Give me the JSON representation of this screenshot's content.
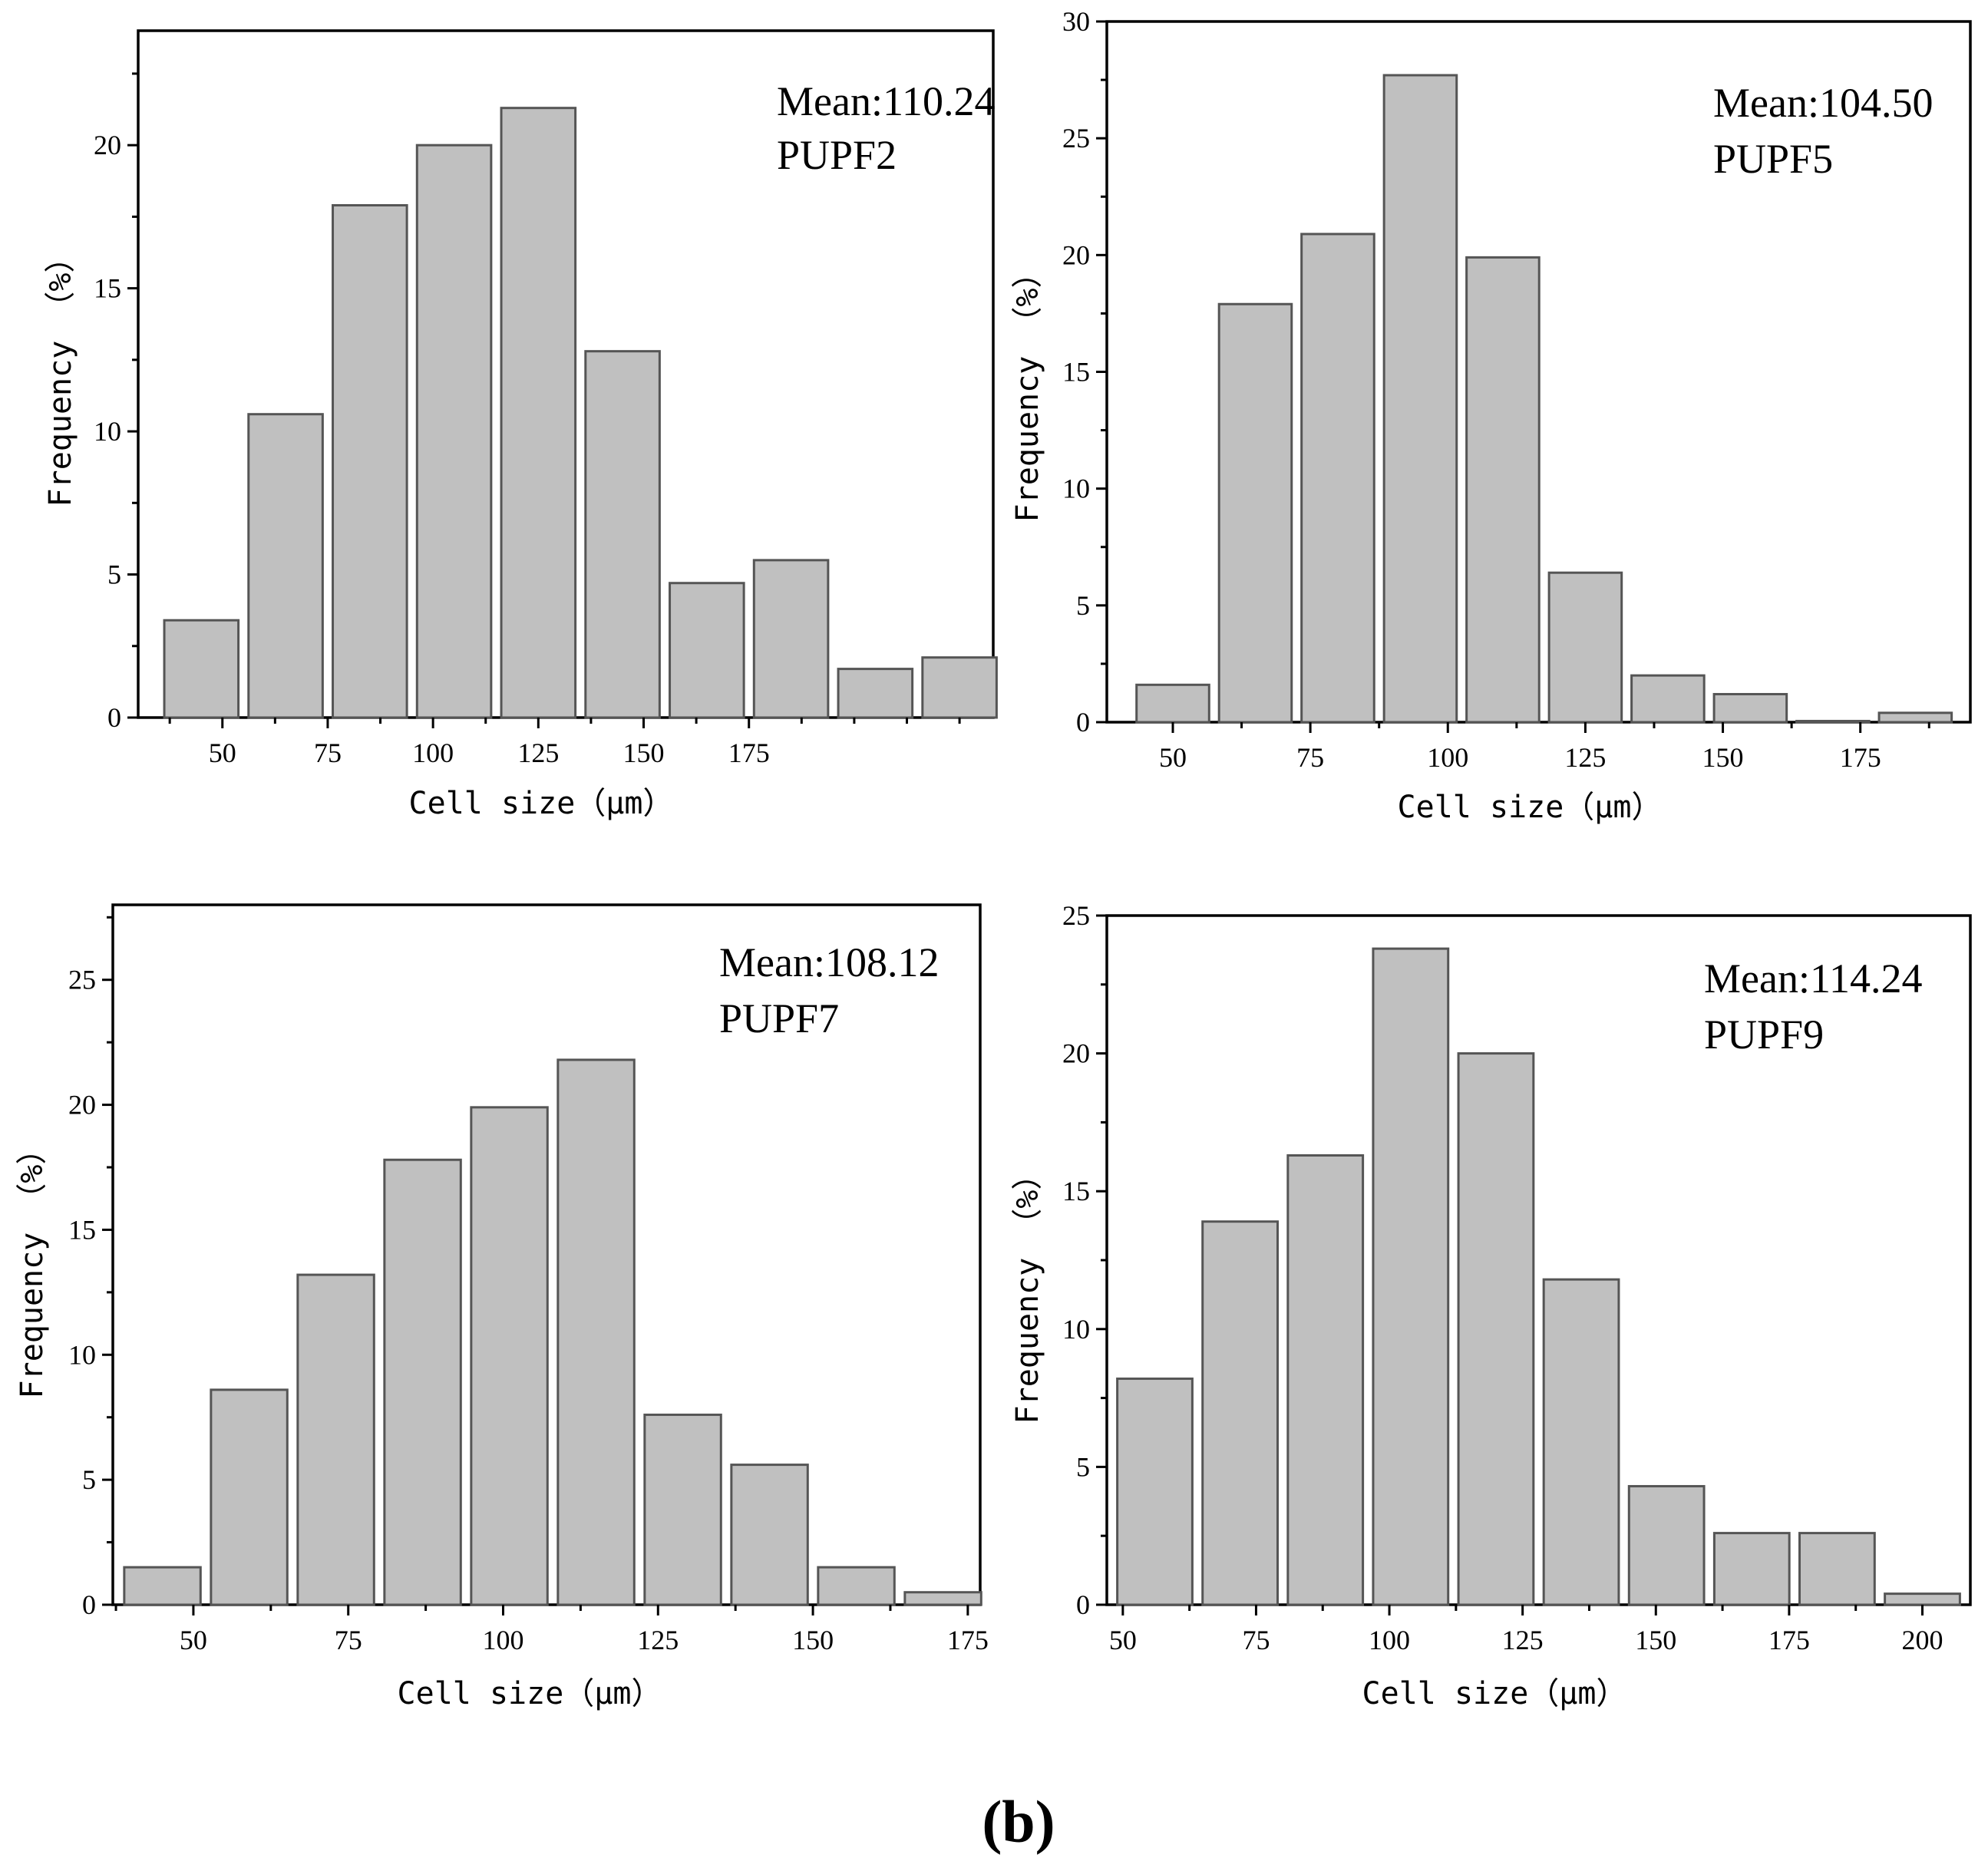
{
  "figure_caption": "(b)",
  "chart_data": [
    {
      "type": "bar",
      "title": "PUPF2",
      "annotation": {
        "mean": "Mean:110.24",
        "sample": "PUPF2"
      },
      "xlabel": "Cell size（μm）",
      "ylabel": "Frequency （%）",
      "bin_centers": [
        45,
        65,
        85,
        105,
        125,
        145,
        165,
        185,
        205,
        225
      ],
      "bin_width": 20,
      "values": [
        3.4,
        10.6,
        17.9,
        20.0,
        21.3,
        12.8,
        4.7,
        5.5,
        1.7,
        2.1
      ],
      "xlim": [
        30,
        233
      ],
      "ylim": [
        0,
        24
      ],
      "xticks": [
        50,
        75,
        100,
        125,
        150,
        175
      ],
      "yticks": [
        0,
        5,
        10,
        15,
        20
      ],
      "ytick_labels": [
        "0",
        "5",
        "10",
        "15",
        "20"
      ]
    },
    {
      "type": "bar",
      "title": "PUPF5",
      "annotation": {
        "mean": "Mean:104.50",
        "sample": "PUPF5"
      },
      "xlabel": "Cell size（μm）",
      "ylabel": "Frequency （%）",
      "bin_centers": [
        50,
        65,
        80,
        95,
        110,
        125,
        140,
        155,
        170,
        185
      ],
      "bin_width": 15,
      "values": [
        1.6,
        17.9,
        20.9,
        27.7,
        19.9,
        6.4,
        2.0,
        1.2,
        0.05,
        0.4
      ],
      "xlim": [
        38,
        195
      ],
      "ylim": [
        0,
        30
      ],
      "xticks": [
        50,
        75,
        100,
        125,
        150,
        175
      ],
      "yticks": [
        0,
        5,
        10,
        15,
        20,
        25,
        30
      ],
      "ytick_labels": [
        "0",
        "5",
        "10",
        "15",
        "20",
        "25",
        "30"
      ]
    },
    {
      "type": "bar",
      "title": "PUPF7",
      "annotation": {
        "mean": "Mean:108.12",
        "sample": "PUPF7"
      },
      "xlabel": "Cell size（μm）",
      "ylabel": "Frequency （%）",
      "bin_centers": [
        45,
        59,
        73,
        87,
        101,
        115,
        129,
        143,
        157,
        171
      ],
      "bin_width": 14,
      "values": [
        1.5,
        8.6,
        13.2,
        17.8,
        19.9,
        21.8,
        7.6,
        5.6,
        1.5,
        0.5
      ],
      "xlim": [
        37,
        177
      ],
      "ylim": [
        0,
        28
      ],
      "xticks": [
        50,
        75,
        100,
        125,
        150,
        175
      ],
      "yticks": [
        0,
        5,
        10,
        15,
        20,
        25
      ],
      "ytick_labels": [
        "0",
        "5",
        "10",
        "15",
        "20",
        "25"
      ]
    },
    {
      "type": "bar",
      "title": "PUPF9",
      "annotation": {
        "mean": "Mean:114.24",
        "sample": "PUPF9"
      },
      "xlabel": "Cell size（μm）",
      "ylabel": "Frequency （%）",
      "bin_centers": [
        56,
        72,
        88,
        104,
        120,
        136,
        152,
        168,
        184,
        200
      ],
      "bin_width": 16,
      "values": [
        8.2,
        13.9,
        16.3,
        23.8,
        20.0,
        11.8,
        4.3,
        2.6,
        2.6,
        0.4
      ],
      "xlim": [
        47,
        209
      ],
      "ylim": [
        0,
        25
      ],
      "xticks": [
        50,
        75,
        100,
        125,
        150,
        175,
        200
      ],
      "yticks": [
        0,
        5,
        10,
        15,
        20,
        25
      ],
      "ytick_labels": [
        "0",
        "5",
        "10",
        "15",
        "20",
        "25"
      ]
    }
  ]
}
